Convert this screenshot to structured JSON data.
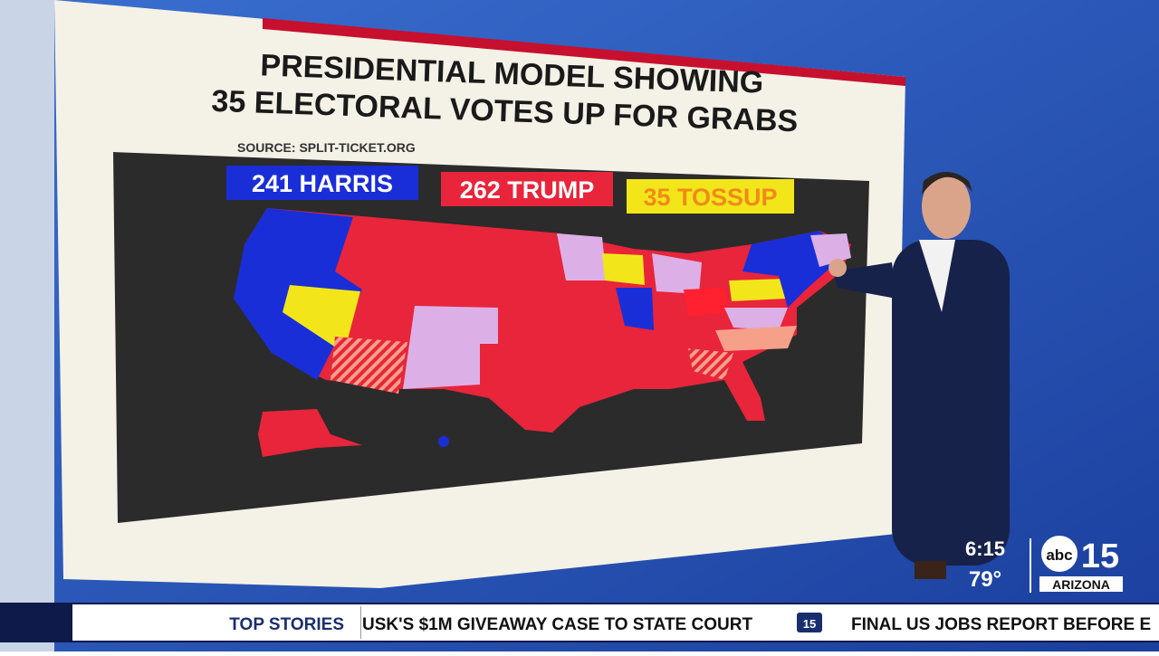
{
  "graphic": {
    "title_line1": "PRESIDENTIAL MODEL SHOWING",
    "title_line2": "35 ELECTORAL VOTES UP FOR GRABS",
    "source": "SOURCE: SPLIT-TICKET.ORG",
    "tallies": [
      {
        "label": "241 HARRIS",
        "color": "#1a2ed8"
      },
      {
        "label": "262 TRUMP",
        "color": "#e8253a"
      },
      {
        "label": "35 TOSSUP",
        "color": "#f2e61a"
      }
    ]
  },
  "bug": {
    "time": "6:15",
    "temperature": "79°",
    "logo_abc": "abc",
    "logo_number": "15",
    "logo_region": "ARIZONA"
  },
  "ticker": {
    "label": "TOP STORIES",
    "headline1": "USK'S $1M GIVEAWAY CASE TO STATE COURT",
    "logo": "15",
    "headline2": "FINAL US JOBS REPORT BEFORE E"
  }
}
